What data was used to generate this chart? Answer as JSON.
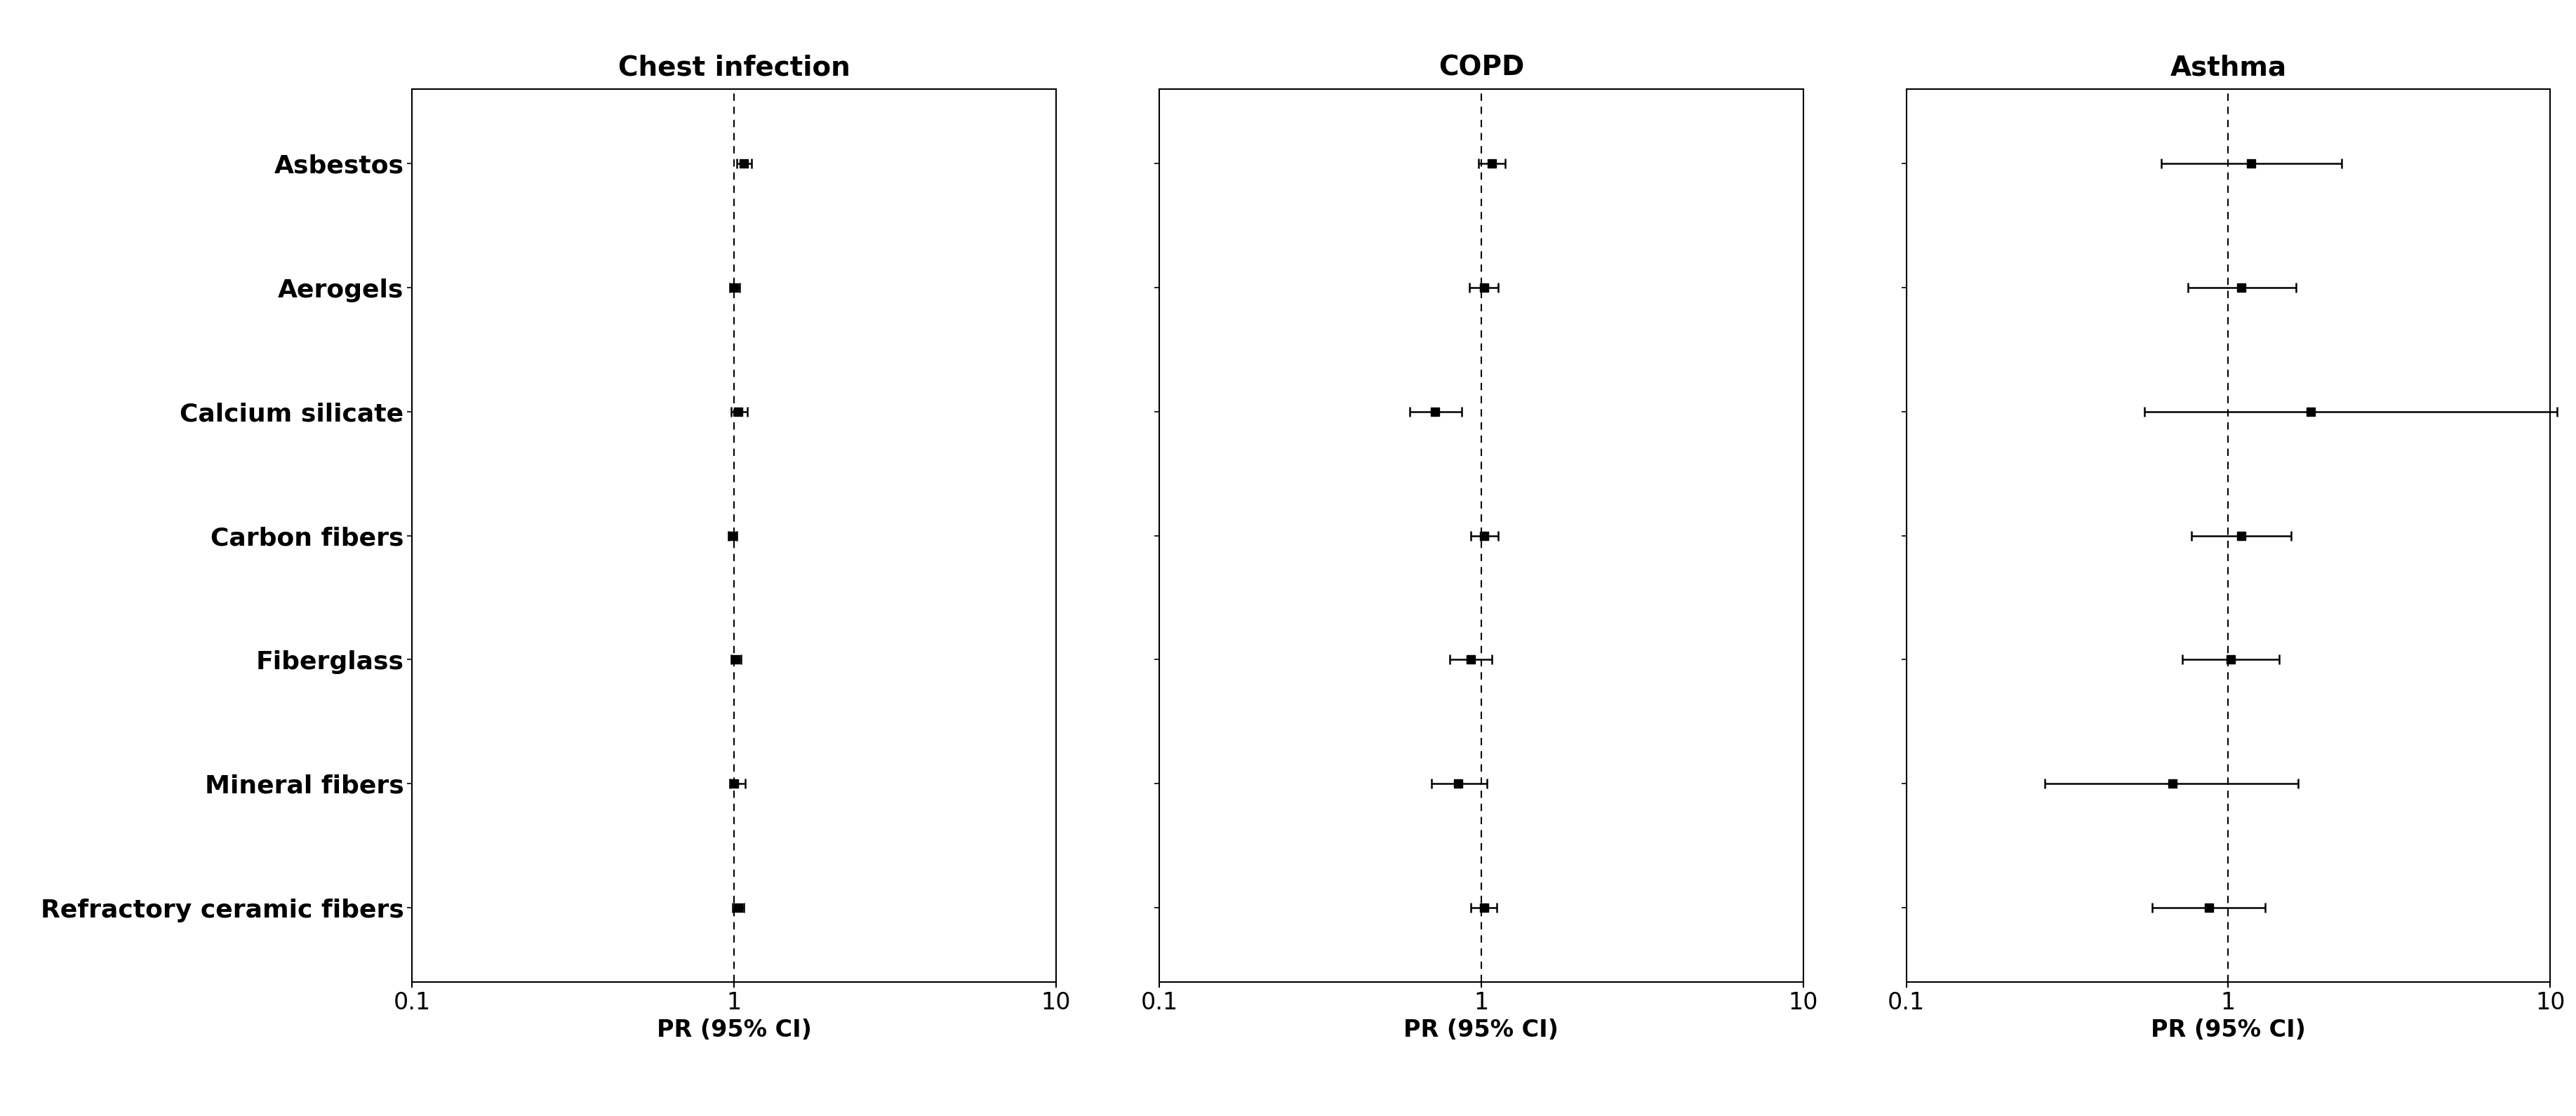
{
  "categories": [
    "Asbestos",
    "Aerogels",
    "Calcium silicate",
    "Carbon fibers",
    "Fiberglass",
    "Mineral fibers",
    "Refractory ceramic fibers"
  ],
  "panels": [
    {
      "title": "Chest infection",
      "xlabel": "PR (95% CI)",
      "points": [
        1.07,
        1.0,
        1.03,
        0.99,
        1.01,
        1.0,
        1.03
      ],
      "ci_low": [
        1.02,
        0.97,
        0.98,
        0.96,
        0.98,
        0.97,
        0.99
      ],
      "ci_high": [
        1.13,
        1.04,
        1.1,
        1.02,
        1.05,
        1.08,
        1.07
      ]
    },
    {
      "title": "COPD",
      "xlabel": "PR (95% CI)",
      "points": [
        1.08,
        1.02,
        0.72,
        1.02,
        0.93,
        0.85,
        1.02
      ],
      "ci_low": [
        0.98,
        0.92,
        0.6,
        0.93,
        0.8,
        0.7,
        0.93
      ],
      "ci_high": [
        1.19,
        1.13,
        0.87,
        1.13,
        1.08,
        1.04,
        1.12
      ]
    },
    {
      "title": "Asthma",
      "xlabel": "PR (95% CI)",
      "points": [
        1.18,
        1.1,
        1.8,
        1.1,
        1.02,
        0.67,
        0.87
      ],
      "ci_low": [
        0.62,
        0.75,
        0.55,
        0.77,
        0.72,
        0.27,
        0.58
      ],
      "ci_high": [
        2.25,
        1.62,
        10.5,
        1.57,
        1.44,
        1.65,
        1.3
      ]
    }
  ],
  "xlim": [
    0.1,
    10
  ],
  "xticks": [
    0.1,
    1,
    10
  ],
  "xticklabels": [
    "0.1",
    "1",
    "10"
  ],
  "ref_line": 1.0,
  "marker": "s",
  "markersize": 9,
  "linewidth": 1.8,
  "capsize": 5,
  "background_color": "#ffffff",
  "label_fontsize": 26,
  "title_fontsize": 28,
  "tick_fontsize": 24,
  "axis_label_fontsize": 24
}
